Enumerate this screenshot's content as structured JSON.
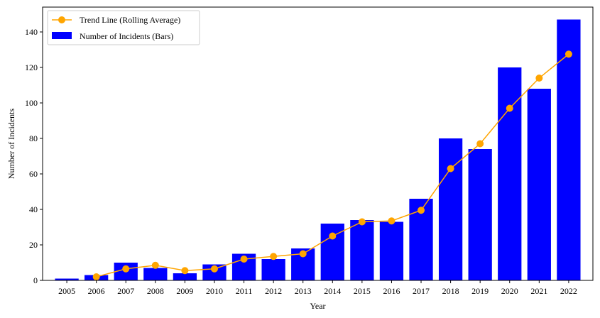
{
  "chart_data": {
    "type": "bar",
    "xlabel": "Year",
    "ylabel": "Number of Incidents",
    "ylim": [
      0,
      154
    ],
    "yticks": [
      0,
      20,
      40,
      60,
      80,
      100,
      120,
      140
    ],
    "categories": [
      "2005",
      "2006",
      "2007",
      "2008",
      "2009",
      "2010",
      "2011",
      "2012",
      "2013",
      "2014",
      "2015",
      "2016",
      "2017",
      "2018",
      "2019",
      "2020",
      "2021",
      "2022"
    ],
    "series": [
      {
        "name": "Number of Incidents (Bars)",
        "type": "bar",
        "color": "#0000ff",
        "values": [
          1,
          3,
          10,
          7,
          4,
          9,
          15,
          12,
          18,
          32,
          34,
          33,
          46,
          80,
          74,
          120,
          108,
          147
        ]
      },
      {
        "name": "Trend Line (Rolling Average)",
        "type": "line",
        "color": "#ffa500",
        "marker": "circle",
        "values": [
          null,
          2,
          6.5,
          8.5,
          5.5,
          6.5,
          12,
          13.5,
          15,
          25,
          33,
          33.5,
          39.5,
          63,
          77,
          97,
          114,
          127.5
        ]
      }
    ],
    "legend_position": "top-left",
    "grid": false
  }
}
